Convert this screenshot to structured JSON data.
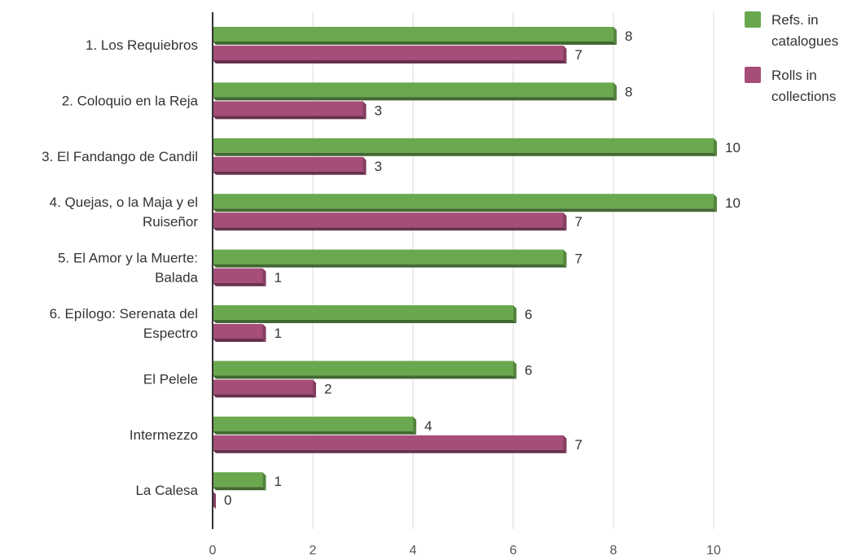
{
  "chart_data": {
    "type": "bar",
    "orientation": "horizontal",
    "style": "3d",
    "categories": [
      [
        "1. Los Requiebros"
      ],
      [
        "2. Coloquio en la Reja"
      ],
      [
        "3. El Fandango de Candil"
      ],
      [
        "4. Quejas, o la Maja y el",
        "Ruiseñor"
      ],
      [
        "5. El Amor y la Muerte:",
        "Balada"
      ],
      [
        "6. Epílogo: Serenata del",
        "Espectro"
      ],
      [
        "El Pelele"
      ],
      [
        "Intermezzo"
      ],
      [
        "La Calesa"
      ]
    ],
    "series": [
      {
        "name": [
          "Refs. in",
          "catalogues"
        ],
        "color": "#6aa84f",
        "values": [
          8,
          8,
          10,
          10,
          7,
          6,
          6,
          4,
          1
        ]
      },
      {
        "name": [
          "Rolls in",
          "collections"
        ],
        "color": "#a64d79",
        "values": [
          7,
          3,
          3,
          7,
          1,
          1,
          2,
          7,
          0
        ]
      }
    ],
    "xlim": [
      0,
      10
    ],
    "xticks": [
      "0",
      "2",
      "4",
      "6",
      "8",
      "10"
    ],
    "grid": true,
    "legend_position": "right",
    "title": "",
    "xlabel": "",
    "ylabel": ""
  }
}
